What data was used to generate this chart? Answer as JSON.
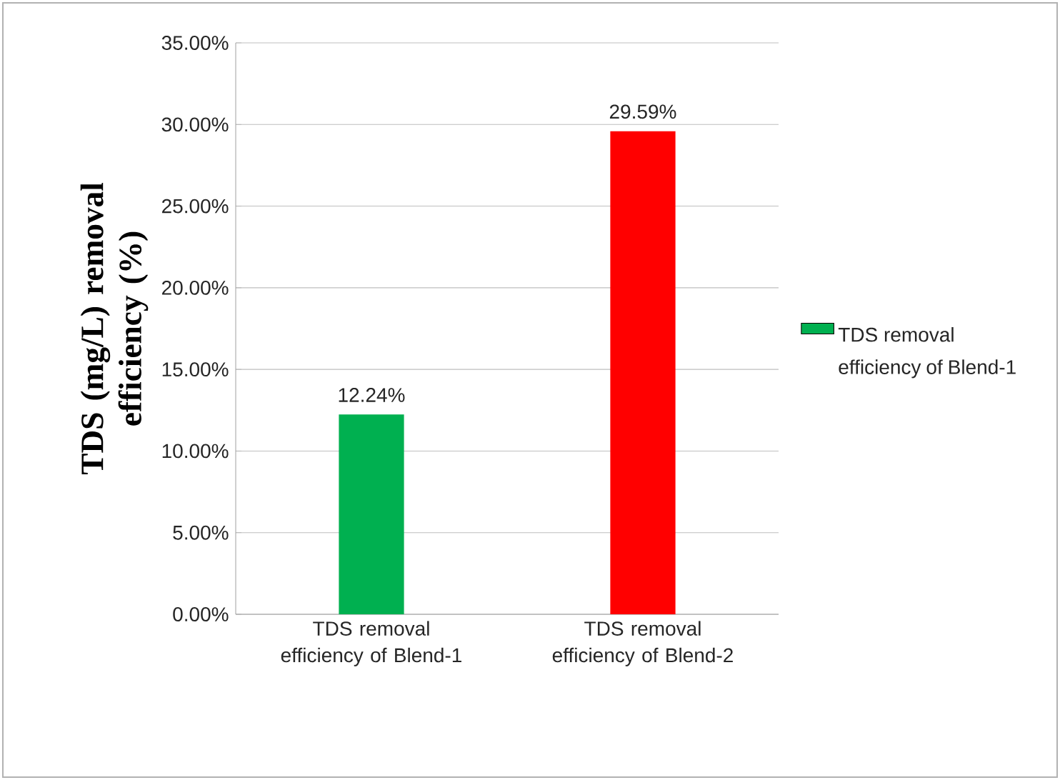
{
  "chart_data": {
    "type": "bar",
    "ylabel": "TDS (mg/L) removal efficiency (%)",
    "categories": [
      "TDS removal efficiency of Blend-1",
      "TDS removal efficiency of Blend-2"
    ],
    "series": [
      {
        "name": "TDS removal efficiency of Blend-1",
        "colors": [
          "#00b050",
          "#ff0000"
        ],
        "values": [
          12.24,
          29.59
        ],
        "value_labels": [
          "12.24%",
          "29.59%"
        ]
      }
    ],
    "ylim": [
      0,
      35
    ],
    "yticks": [
      {
        "value": 0,
        "label": "0.00%"
      },
      {
        "value": 5,
        "label": "5.00%"
      },
      {
        "value": 10,
        "label": "10.00%"
      },
      {
        "value": 15,
        "label": "15.00%"
      },
      {
        "value": 20,
        "label": "20.00%"
      },
      {
        "value": 25,
        "label": "25.00%"
      },
      {
        "value": 30,
        "label": "30.00%"
      },
      {
        "value": 35,
        "label": "35.00%"
      }
    ],
    "grid": "y",
    "legend": "right"
  }
}
